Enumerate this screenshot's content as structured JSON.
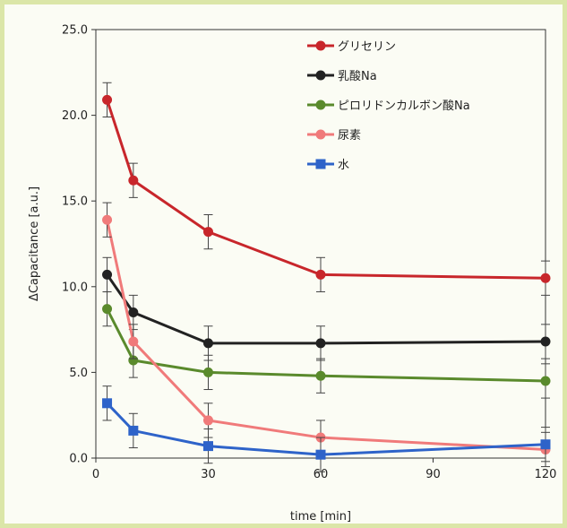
{
  "chart_data": {
    "type": "line",
    "title": "",
    "xlabel": "time [min]",
    "ylabel": "ΔCapacitance [a.u.]",
    "xlim": [
      0,
      120
    ],
    "ylim": [
      0,
      25
    ],
    "x_ticks": [
      "0",
      "30",
      "60",
      "90",
      "120"
    ],
    "y_ticks": [
      "0.0",
      "5.0",
      "10.0",
      "15.0",
      "20.0",
      "25.0"
    ],
    "grid": false,
    "legend_position": "top-right",
    "x": [
      3,
      10,
      30,
      60,
      120
    ],
    "series": [
      {
        "name": "グリセリン",
        "color": "#c8262b",
        "marker": "circle",
        "values": [
          20.9,
          16.2,
          13.2,
          10.7,
          10.5
        ],
        "errors": [
          1.0,
          1.0,
          1.0,
          1.0,
          1.0
        ]
      },
      {
        "name": "乳酸Na",
        "color": "#222222",
        "marker": "circle",
        "values": [
          10.7,
          8.5,
          6.7,
          6.7,
          6.8
        ],
        "errors": [
          1.0,
          1.0,
          1.0,
          1.0,
          1.0
        ]
      },
      {
        "name": "ピロリドンカルボン酸Na",
        "color": "#5a8a2c",
        "marker": "circle",
        "values": [
          8.7,
          5.7,
          5.0,
          4.8,
          4.5
        ],
        "errors": [
          1.0,
          1.0,
          1.0,
          1.0,
          1.0
        ]
      },
      {
        "name": "尿素",
        "color": "#f07a7a",
        "marker": "circle",
        "values": [
          13.9,
          6.8,
          2.2,
          1.2,
          0.5
        ],
        "errors": [
          1.0,
          1.0,
          1.0,
          1.0,
          1.0
        ]
      },
      {
        "name": "水",
        "color": "#2e63c9",
        "marker": "square",
        "values": [
          3.2,
          1.6,
          0.7,
          0.2,
          0.8
        ],
        "errors": [
          1.0,
          1.0,
          1.0,
          1.0,
          1.0
        ]
      }
    ]
  }
}
